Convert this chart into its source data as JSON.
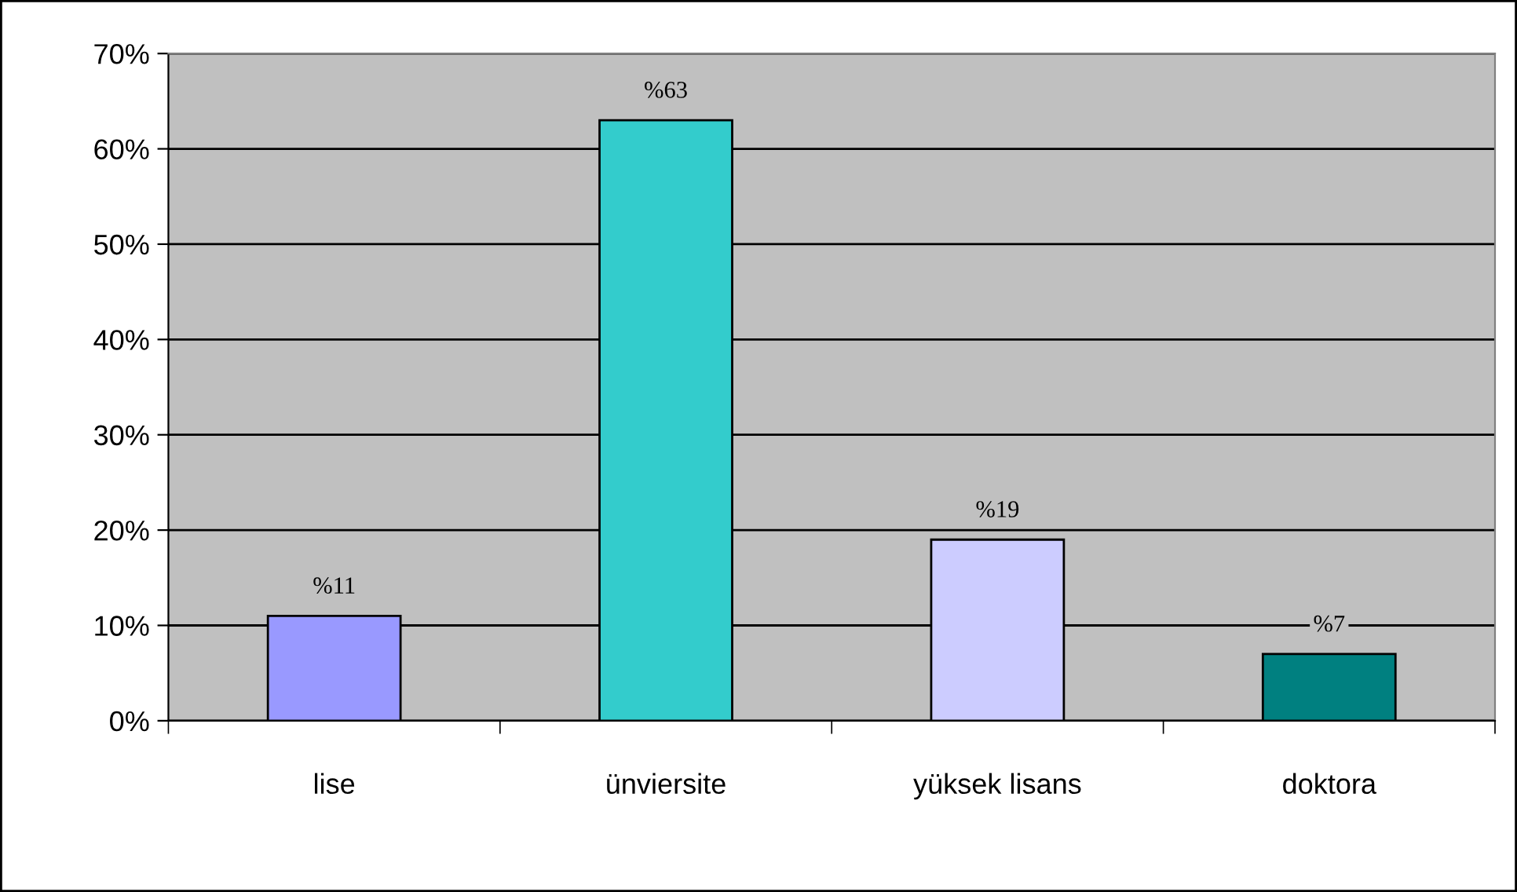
{
  "chart_data": {
    "type": "bar",
    "categories": [
      "lise",
      "ünviersite",
      "yüksek lisans",
      "doktora"
    ],
    "values": [
      11,
      63,
      19,
      7
    ],
    "colors": [
      "#9999ff",
      "#33cccc",
      "#ccccff",
      "#008080"
    ],
    "value_labels": [
      "%11",
      "%63",
      "%19",
      "%7"
    ],
    "ylim": [
      0,
      70
    ],
    "yticks": [
      {
        "value": 0,
        "label": "0%"
      },
      {
        "value": 10,
        "label": "10%"
      },
      {
        "value": 20,
        "label": "20%"
      },
      {
        "value": 30,
        "label": "30%"
      },
      {
        "value": 40,
        "label": "40%"
      },
      {
        "value": 50,
        "label": "50%"
      },
      {
        "value": 60,
        "label": "60%"
      },
      {
        "value": 70,
        "label": "70%"
      }
    ],
    "grid": "y",
    "legend": false
  }
}
